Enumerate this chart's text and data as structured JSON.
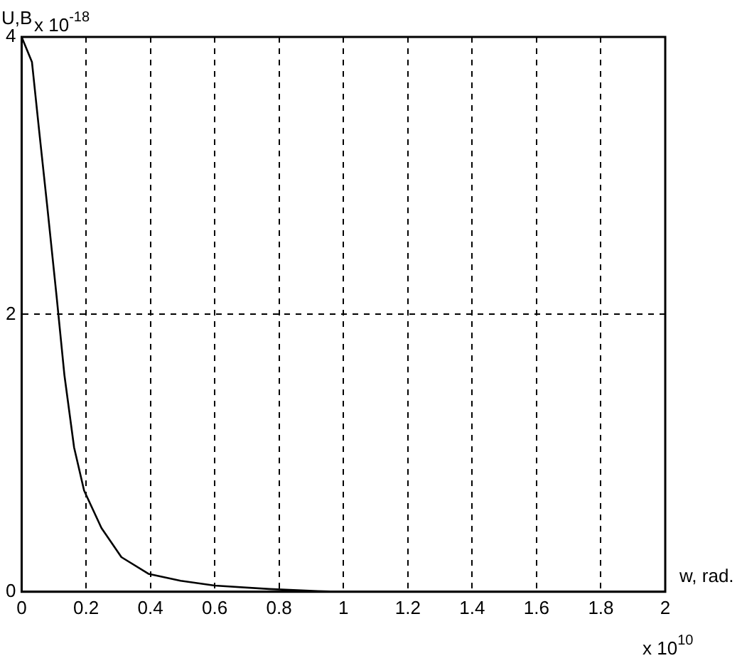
{
  "chart_data": {
    "type": "line",
    "ylabel": "U,B",
    "xlabel": "w, rad.",
    "annotations": [
      "x 10$^{-18}$",
      "x 10$^{10}$"
    ],
    "x": [
      0,
      0.032,
      0.055,
      0.079,
      0.109,
      0.133,
      0.163,
      0.194,
      0.248,
      0.31,
      0.394,
      0.494,
      0.6,
      0.77,
      0.92,
      1,
      1.2,
      1.4,
      1.6,
      1.8,
      2
    ],
    "series": [
      {
        "color": "#000000",
        "values": [
          4,
          3.82,
          3.31,
          2.79,
          2.12,
          1.56,
          1.04,
          0.73,
          0.46,
          0.25,
          0.13,
          0.08,
          0.045,
          0.02,
          0.005,
          0,
          0,
          0,
          0,
          0,
          0
        ]
      }
    ],
    "xlim": [
      0,
      2
    ],
    "xticks": [
      0,
      0.2,
      0.4,
      0.6,
      0.8,
      1,
      1.2,
      1.4,
      1.6,
      1.8,
      2
    ],
    "ylim": [
      0,
      4
    ],
    "yticks": [
      0,
      2,
      4
    ],
    "grid": true,
    "line_style": "solid",
    "marker": "none",
    "legend": false
  }
}
